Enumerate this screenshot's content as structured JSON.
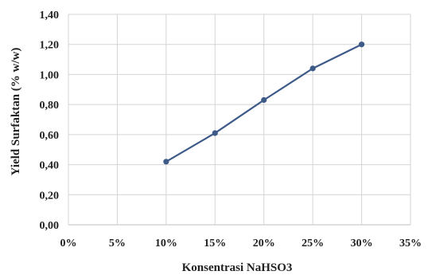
{
  "chart_data": {
    "type": "line",
    "title": "",
    "xlabel": "Konsentrasi NaHSO3",
    "ylabel": "Yield Surfaktan (% w/w)",
    "x_tick_labels": [
      "0%",
      "5%",
      "10%",
      "15%",
      "20%",
      "25%",
      "30%",
      "35%"
    ],
    "y_tick_labels": [
      "0,00",
      "0,20",
      "0,40",
      "0,60",
      "0,80",
      "1,00",
      "1,20",
      "1,40"
    ],
    "xlim": [
      0,
      35
    ],
    "ylim": [
      0,
      1.4
    ],
    "x_tick_step": 5,
    "y_tick_step": 0.2,
    "grid": true,
    "legend": "none",
    "series": [
      {
        "x": [
          10,
          15,
          20,
          25,
          30
        ],
        "values": [
          0.42,
          0.61,
          0.83,
          1.04,
          1.2
        ],
        "color": "#3d5a88",
        "marker": "circle"
      }
    ],
    "colors": {
      "line": "#3d5a88",
      "grid": "#d4d4d4",
      "axis": "#bfbfbf",
      "text": "#222222"
    }
  }
}
